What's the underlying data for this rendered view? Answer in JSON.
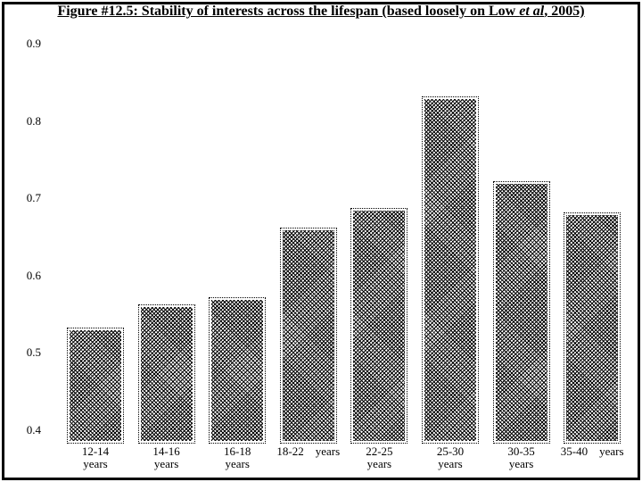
{
  "figure": {
    "title_prefix": "Figure #12.5: Stability of interests across the lifespan (based loosely on Low ",
    "title_italic": "et al",
    "title_suffix": ", 2005)"
  },
  "chart_data": {
    "type": "bar",
    "title": "Figure #12.5: Stability of interests across the lifespan (based loosely on Low et al, 2005)",
    "categories": [
      "12-14 years",
      "14-16 years",
      "16-18 years",
      "18-22 years",
      "22-25 years",
      "25-30 years",
      "30-35 years",
      "35-40 years"
    ],
    "category_label_lines": [
      [
        "12-14",
        "years"
      ],
      [
        "14-16",
        "years"
      ],
      [
        "16-18",
        "years"
      ],
      [
        "18-22    years"
      ],
      [
        "22-25",
        "years"
      ],
      [
        "25-30",
        "years"
      ],
      [
        "30-35",
        "years"
      ],
      [
        "35-40    years"
      ]
    ],
    "values": [
      0.53,
      0.56,
      0.57,
      0.66,
      0.685,
      0.83,
      0.72,
      0.68
    ],
    "xlabel": "",
    "ylabel": "",
    "yticks": [
      0.9,
      0.8,
      0.7,
      0.6,
      0.5,
      0.4
    ],
    "ylim": [
      0.387,
      0.923
    ],
    "grid": false,
    "legend": false,
    "bar_style": {
      "fill": "black-and-white diagonal crosshatch pattern",
      "outline": "thin dotted black, offset outside fill",
      "color": "#000000"
    },
    "background": "#ffffff",
    "frame_color": "#000000"
  }
}
